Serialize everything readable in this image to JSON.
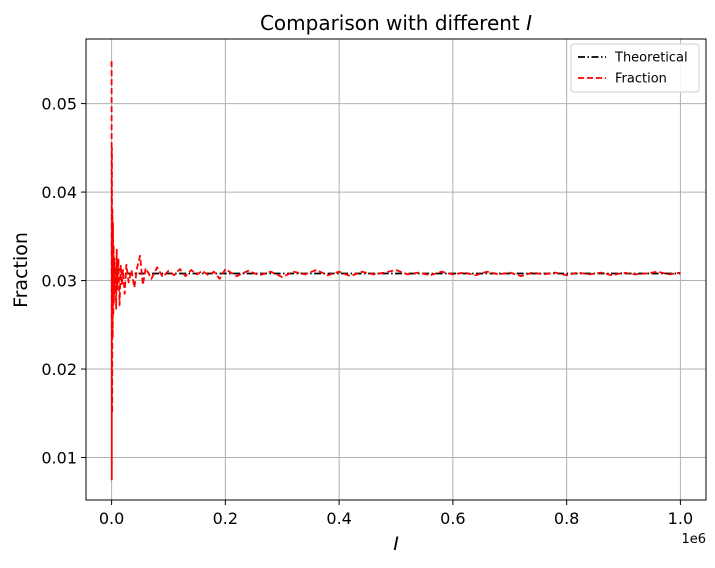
{
  "chart_data": {
    "type": "line",
    "title": "Comparison with different I",
    "title_prefix": "Comparison with different ",
    "title_italic": "I",
    "xlabel": "I",
    "ylabel": "Fraction",
    "x_offset_label": "1e6",
    "xlim": [
      -45000,
      1045000
    ],
    "ylim": [
      0.0052,
      0.0573
    ],
    "x_ticks": [
      0,
      0.2,
      0.4,
      0.6,
      0.8,
      1.0
    ],
    "x_tick_labels": [
      "0.0",
      "0.2",
      "0.4",
      "0.6",
      "0.8",
      "1.0"
    ],
    "x_tick_scale": 1000000,
    "y_ticks": [
      0.01,
      0.02,
      0.03,
      0.04,
      0.05
    ],
    "y_tick_labels": [
      "0.01",
      "0.02",
      "0.03",
      "0.04",
      "0.05"
    ],
    "grid": true,
    "legend_position": "top-right",
    "series": [
      {
        "name": "Theoretical",
        "color": "#000000",
        "style": "dashdot",
        "x": [
          0,
          1000000
        ],
        "y": [
          0.0308,
          0.0308
        ]
      },
      {
        "name": "Fraction",
        "color": "#ff0000",
        "style": "dashed",
        "x": [
          0,
          300,
          600,
          1000,
          1500,
          2000,
          2500,
          3000,
          3500,
          4000,
          5000,
          6000,
          7000,
          8000,
          9000,
          10000,
          12000,
          14000,
          16000,
          18000,
          20000,
          23000,
          26000,
          30000,
          35000,
          40000,
          45000,
          50000,
          55000,
          60000,
          70000,
          80000,
          90000,
          100000,
          110000,
          120000,
          130000,
          140000,
          150000,
          160000,
          170000,
          180000,
          190000,
          200000,
          220000,
          240000,
          260000,
          280000,
          300000,
          320000,
          340000,
          360000,
          380000,
          400000,
          420000,
          440000,
          460000,
          480000,
          500000,
          520000,
          540000,
          560000,
          580000,
          600000,
          620000,
          640000,
          660000,
          680000,
          700000,
          720000,
          740000,
          760000,
          780000,
          800000,
          820000,
          840000,
          860000,
          880000,
          900000,
          920000,
          940000,
          960000,
          980000,
          1000000
        ],
        "y": [
          0.0548,
          0.0075,
          0.045,
          0.015,
          0.038,
          0.0235,
          0.0365,
          0.026,
          0.034,
          0.0275,
          0.0325,
          0.0285,
          0.0315,
          0.0268,
          0.0335,
          0.029,
          0.0325,
          0.0272,
          0.0318,
          0.0295,
          0.0312,
          0.0285,
          0.0318,
          0.0298,
          0.0312,
          0.0292,
          0.0315,
          0.0328,
          0.0295,
          0.0314,
          0.0302,
          0.0315,
          0.0304,
          0.0311,
          0.0306,
          0.0313,
          0.0305,
          0.0312,
          0.0307,
          0.0311,
          0.0306,
          0.031,
          0.0302,
          0.0313,
          0.0305,
          0.0311,
          0.0306,
          0.031,
          0.0304,
          0.031,
          0.0307,
          0.0312,
          0.0306,
          0.031,
          0.0305,
          0.031,
          0.0307,
          0.0309,
          0.0312,
          0.0307,
          0.0309,
          0.0306,
          0.031,
          0.0307,
          0.0309,
          0.0306,
          0.031,
          0.0307,
          0.0309,
          0.0305,
          0.0309,
          0.0307,
          0.0309,
          0.0306,
          0.0309,
          0.0307,
          0.0309,
          0.0306,
          0.0309,
          0.0307,
          0.0308,
          0.031,
          0.0307,
          0.0309
        ]
      }
    ]
  }
}
